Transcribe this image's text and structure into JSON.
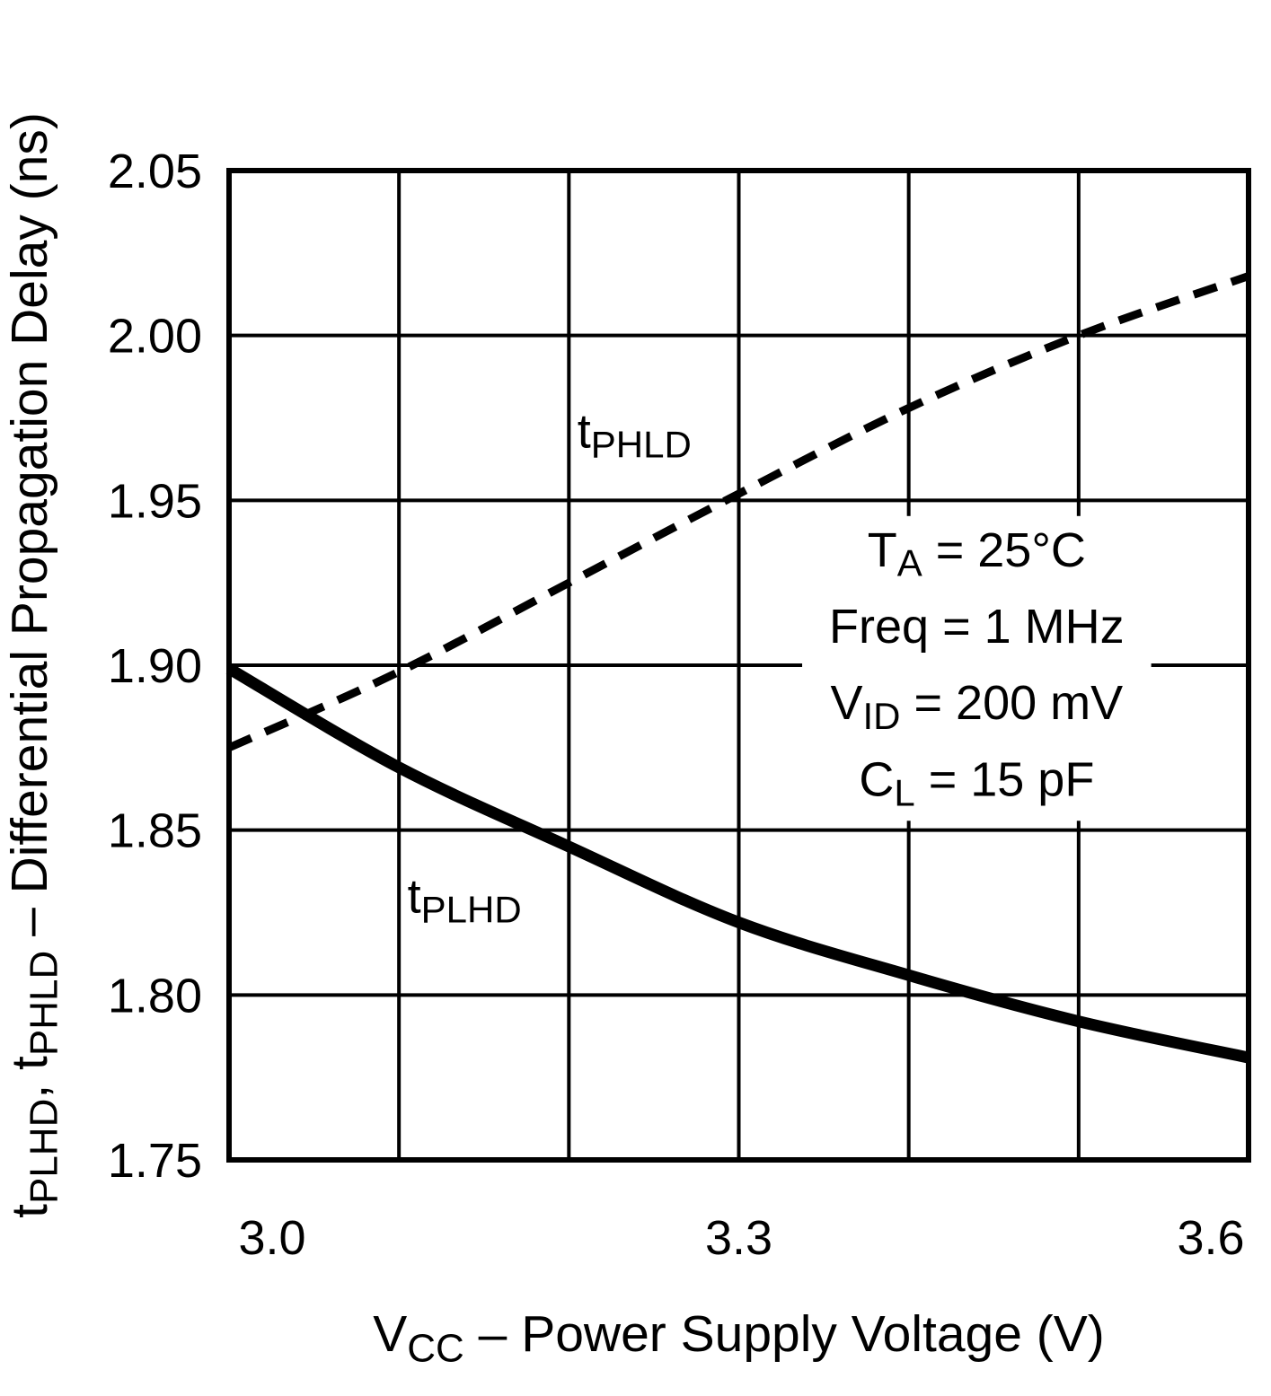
{
  "figure": {
    "background": "#ffffff",
    "line_color": "#000000"
  },
  "chart_data": {
    "type": "line",
    "title": "",
    "xlabel": "V_{CC} – Power Supply Voltage (V)",
    "ylabel": "t_{PLHD}, t_{PHLD} – Differential Propagation Delay (ns)",
    "xlim": [
      3.0,
      3.6
    ],
    "ylim": [
      1.75,
      2.05
    ],
    "x_ticks": [
      3.0,
      3.3,
      3.6
    ],
    "x_tick_labels": [
      "3.0",
      "3.3",
      "3.6"
    ],
    "y_ticks": [
      1.75,
      1.8,
      1.85,
      1.9,
      1.95,
      2.0,
      2.05
    ],
    "y_tick_labels": [
      "1.75",
      "1.80",
      "1.85",
      "1.90",
      "1.95",
      "2.00",
      "2.05"
    ],
    "x_grid_step": 0.1,
    "y_grid_step": 0.05,
    "grid": true,
    "legend_position": "inline-curve-labels",
    "series": [
      {
        "name": "tPHLD",
        "label": "t_{PHLD}",
        "line_style": "dashed",
        "x": [
          3.0,
          3.1,
          3.2,
          3.3,
          3.4,
          3.5,
          3.6
        ],
        "values": [
          1.875,
          1.898,
          1.925,
          1.952,
          1.978,
          2.0,
          2.018
        ],
        "label_pos": {
          "x": 3.205,
          "y": 1.966
        }
      },
      {
        "name": "tPLHD",
        "label": "t_{PLHD}",
        "line_style": "solid",
        "x": [
          3.0,
          3.1,
          3.2,
          3.3,
          3.4,
          3.5,
          3.6
        ],
        "values": [
          1.899,
          1.869,
          1.845,
          1.822,
          1.806,
          1.792,
          1.781
        ],
        "label_pos": {
          "x": 3.105,
          "y": 1.825
        }
      }
    ],
    "conditions": {
      "lines": [
        "T_{A} = 25°C",
        "Freq = 1 MHz",
        "V_{ID} = 200 mV",
        "C_{L} = 15 pF"
      ],
      "center_x": 3.44,
      "first_line_y": 1.93,
      "line_spacing_y": 0.0232
    }
  }
}
